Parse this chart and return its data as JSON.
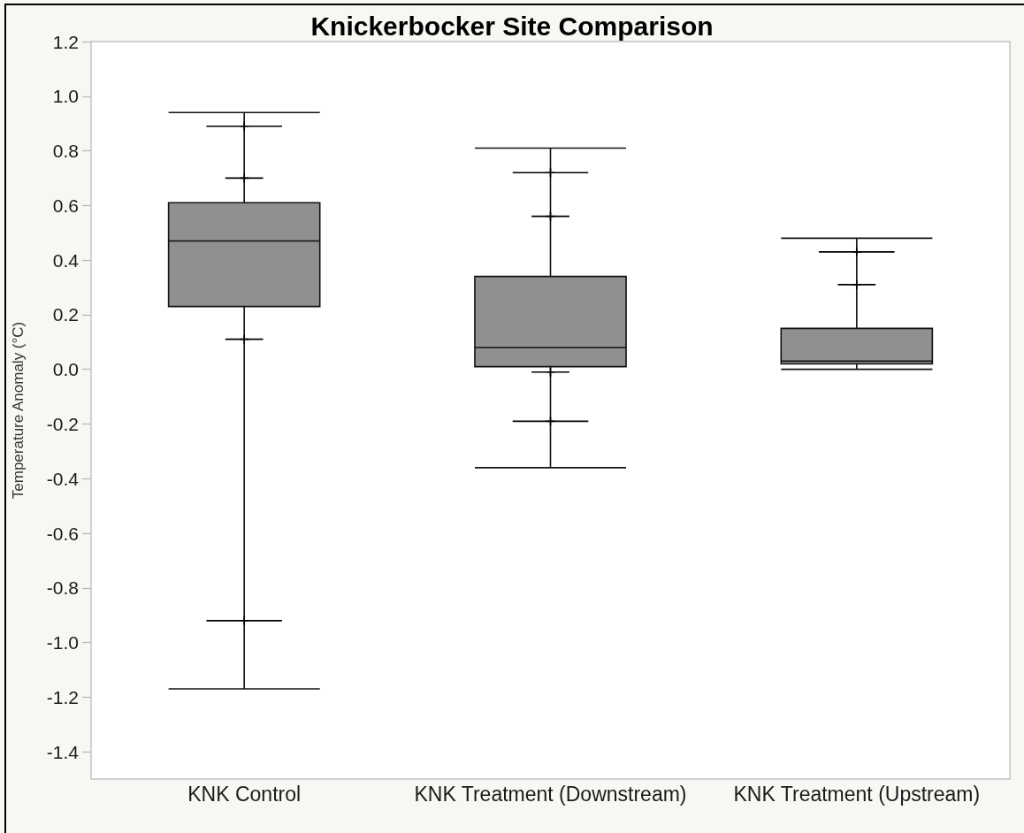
{
  "chart_data": {
    "type": "box",
    "title": "Knickerbocker Site Comparison",
    "ylabel": "Temperature Anomaly (°C)",
    "categories": [
      "KNK Control",
      "KNK Treatment (Downstream)",
      "KNK Treatment (Upstream)"
    ],
    "series": [
      {
        "type": "box",
        "color": "#909090",
        "boxes": [
          {
            "low": -1.17,
            "q1": 0.23,
            "median": 0.47,
            "q3": 0.61,
            "high": 0.94
          },
          {
            "low": -0.36,
            "q1": 0.01,
            "median": 0.08,
            "q3": 0.34,
            "high": 0.81
          },
          {
            "low": 0.0,
            "q1": 0.02,
            "median": 0.03,
            "q3": 0.15,
            "high": 0.48
          }
        ]
      },
      {
        "type": "scatter",
        "color": "#000000",
        "x": [
          "KNK Control",
          "KNK Control",
          "KNK Treatment (Downstream)",
          "KNK Treatment (Downstream)",
          "KNK Treatment (Upstream)"
        ],
        "values": [
          0.89,
          -0.92,
          0.72,
          -0.19,
          0.43
        ]
      },
      {
        "type": "scatter",
        "color": "#000000",
        "x": [
          "KNK Control",
          "KNK Control",
          "KNK Treatment (Downstream)",
          "KNK Treatment (Downstream)",
          "KNK Treatment (Upstream)"
        ],
        "values": [
          0.7,
          0.11,
          0.56,
          -0.01,
          0.31
        ]
      }
    ],
    "ylim": [
      -1.5,
      1.2
    ],
    "yticks": [
      -1.4,
      -1.2,
      {
        "value": -1,
        "label": "-1.0"
      },
      -0.8,
      -0.6,
      -0.4,
      -0.2,
      {
        "value": 0,
        "label": "0.0"
      },
      0.2,
      0.4,
      0.6,
      0.8,
      {
        "value": 1,
        "label": "1.0"
      },
      1.2
    ]
  }
}
